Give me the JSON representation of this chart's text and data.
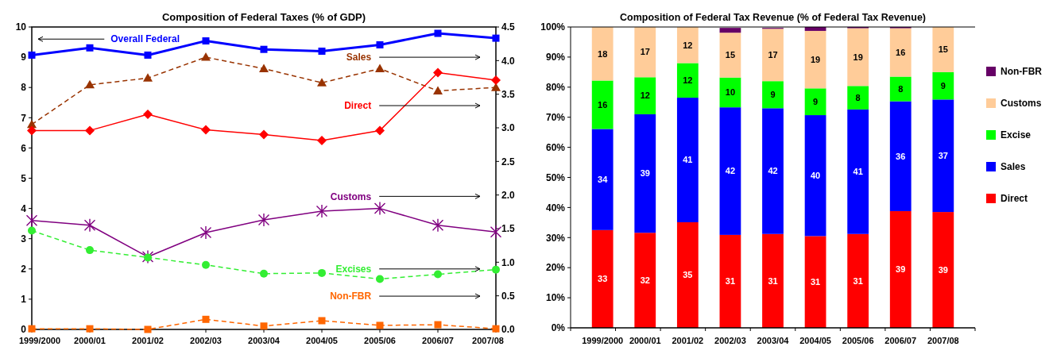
{
  "chart_data": [
    {
      "type": "line",
      "title": "Composition of Federal Taxes (% of GDP)",
      "categories": [
        "1999/2000",
        "2000/01",
        "2001/02",
        "2002/03",
        "2003/04",
        "2004/05",
        "2005/06",
        "2006/07",
        "2007/08"
      ],
      "ylim": [
        0,
        10
      ],
      "yticks": [
        0,
        1,
        2,
        3,
        4,
        5,
        6,
        7,
        8,
        9,
        10
      ],
      "y2lim": [
        0,
        4.5
      ],
      "y2ticks": [
        {
          "value": 0,
          "label": "0.0"
        },
        {
          "value": 0.5,
          "label": "0.5"
        },
        {
          "value": 1,
          "label": "1.0"
        },
        {
          "value": 1.5,
          "label": "1.5"
        },
        {
          "value": 2,
          "label": "2.0"
        },
        {
          "value": 2.5,
          "label": "2.5"
        },
        {
          "value": 3,
          "label": "3.0"
        },
        {
          "value": 3.5,
          "label": "3.5"
        },
        {
          "value": 4,
          "label": "4.0"
        },
        {
          "value": 4.5,
          "label": "4.5"
        }
      ],
      "grid": false,
      "series": [
        {
          "name": "Overall Federal",
          "color": "#0000ff",
          "axis": "y",
          "marker": "square",
          "line_style": "solid",
          "values": [
            9.07,
            9.31,
            9.07,
            9.54,
            9.26,
            9.2,
            9.41,
            9.79,
            9.63
          ]
        },
        {
          "name": "Sales",
          "color": "#993300",
          "axis": "y2",
          "marker": "triangle",
          "line_style": "dashed",
          "values": [
            3.05,
            3.64,
            3.74,
            4.05,
            3.88,
            3.67,
            3.88,
            3.55,
            3.6
          ]
        },
        {
          "name": "Direct",
          "color": "#ff0000",
          "axis": "y2",
          "marker": "diamond",
          "line_style": "solid",
          "values": [
            2.96,
            2.96,
            3.2,
            2.97,
            2.9,
            2.81,
            2.96,
            3.82,
            3.71
          ]
        },
        {
          "name": "Customs",
          "color": "#800080",
          "axis": "y2",
          "marker": "cross",
          "line_style": "solid",
          "values": [
            1.62,
            1.55,
            1.08,
            1.44,
            1.63,
            1.76,
            1.8,
            1.55,
            1.45
          ]
        },
        {
          "name": "Excises",
          "color": "#33ee33",
          "axis": "y2",
          "marker": "circle",
          "line_style": "dashed",
          "values": [
            1.47,
            1.18,
            1.07,
            0.96,
            0.83,
            0.84,
            0.75,
            0.82,
            0.89
          ]
        },
        {
          "name": "Non-FBR",
          "color": "#ff6600",
          "axis": "y2",
          "marker": "square",
          "line_style": "dashed",
          "values": [
            0.01,
            0.01,
            0,
            0.15,
            0.05,
            0.13,
            0.06,
            0.07,
            0.01
          ]
        }
      ]
    },
    {
      "type": "bar",
      "stacked": true,
      "title": "Composition of Federal Tax Revenue (% of Federal Tax Revenue)",
      "categories": [
        "1999/2000",
        "2000/01",
        "2001/02",
        "2002/03",
        "2003/04",
        "2004/05",
        "2005/06",
        "2006/07",
        "2007/08"
      ],
      "ylim": [
        0,
        100
      ],
      "yticks": [
        {
          "value": 0,
          "label": "0%"
        },
        {
          "value": 10,
          "label": "10%"
        },
        {
          "value": 20,
          "label": "20%"
        },
        {
          "value": 30,
          "label": "30%"
        },
        {
          "value": 40,
          "label": "40%"
        },
        {
          "value": 50,
          "label": "50%"
        },
        {
          "value": 60,
          "label": "60%"
        },
        {
          "value": 70,
          "label": "70%"
        },
        {
          "value": 80,
          "label": "80%"
        },
        {
          "value": 90,
          "label": "90%"
        },
        {
          "value": 100,
          "label": "100%"
        }
      ],
      "grid": false,
      "legend": "right",
      "series": [
        {
          "name": "Direct",
          "color": "#ff0000",
          "values": [
            32.5,
            31.6,
            35.1,
            30.9,
            31.2,
            30.5,
            31.2,
            38.8,
            38.5
          ],
          "value_labels": [
            "33",
            "32",
            "35",
            "31",
            "31",
            "31",
            "31",
            "39",
            "39"
          ]
        },
        {
          "name": "Sales",
          "color": "#0000ff",
          "values": [
            33.6,
            39.4,
            41.4,
            42.4,
            41.8,
            40.2,
            41.4,
            36.5,
            37.4
          ],
          "value_labels": [
            "34",
            "39",
            "41",
            "42",
            "42",
            "40",
            "41",
            "36",
            "37"
          ]
        },
        {
          "name": "Excise",
          "color": "#00ff00",
          "values": [
            16.1,
            12.3,
            11.5,
            9.9,
            9,
            8.9,
            7.8,
            8.2,
            9.1
          ],
          "value_labels": [
            "16",
            "12",
            "12",
            "10",
            "9",
            "9",
            "8",
            "8",
            "9"
          ]
        },
        {
          "name": "Customs",
          "color": "#ffcc99",
          "values": [
            17.8,
            16.7,
            12,
            14.9,
            17.4,
            19.1,
            19.2,
            16.1,
            15
          ],
          "value_labels": [
            "18",
            "17",
            "12",
            "15",
            "17",
            "19",
            "19",
            "16",
            "15"
          ]
        },
        {
          "name": "Non-FBR",
          "color": "#660066",
          "values": [
            0,
            0,
            0,
            1.6,
            0.3,
            1.3,
            0.4,
            0.4,
            0
          ],
          "value_labels": [
            null,
            null,
            null,
            null,
            null,
            null,
            null,
            null,
            null
          ]
        }
      ]
    }
  ]
}
